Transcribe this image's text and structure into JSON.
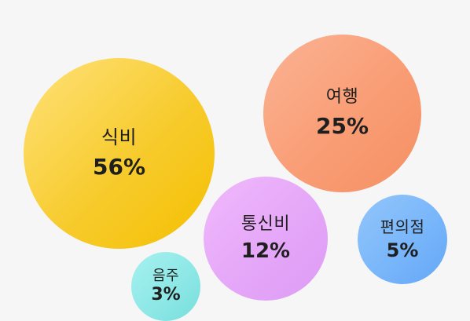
{
  "bubbles": [
    {
      "id": "food",
      "label": "식비",
      "percent": "56%",
      "color": "#f7cb2d"
    },
    {
      "id": "travel",
      "label": "여행",
      "percent": "25%",
      "color": "#f99d75"
    },
    {
      "id": "telecom",
      "label": "통신비",
      "percent": "12%",
      "color": "#e5a7f8"
    },
    {
      "id": "convenience",
      "label": "편의점",
      "percent": "5%",
      "color": "#79b6fa"
    },
    {
      "id": "drinking",
      "label": "음주",
      "percent": "3%",
      "color": "#8ee8e6"
    }
  ]
}
